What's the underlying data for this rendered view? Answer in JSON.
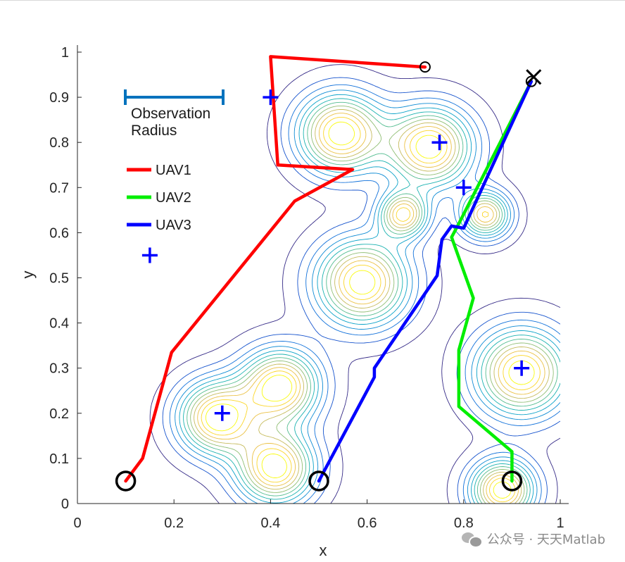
{
  "chart_data": {
    "type": "line",
    "xlabel": "x",
    "ylabel": "y",
    "xlim": [
      0,
      1
    ],
    "ylim": [
      0,
      1
    ],
    "xticks": [
      0,
      0.2,
      0.4,
      0.6,
      0.8,
      1
    ],
    "xtick_labels": [
      "0",
      "0.2",
      "0.4",
      "0.6",
      "0.8",
      "1"
    ],
    "yticks": [
      0,
      0.1,
      0.2,
      0.3,
      0.4,
      0.5,
      0.6,
      0.7,
      0.8,
      0.9,
      1
    ],
    "ytick_labels": [
      "0",
      "0.1",
      "0.2",
      "0.3",
      "0.4",
      "0.5",
      "0.6",
      "0.7",
      "0.8",
      "0.9",
      "1"
    ],
    "grid": false,
    "series": [
      {
        "name": "UAV1",
        "color": "#ff0000",
        "x": [
          0.1,
          0.135,
          0.195,
          0.45,
          0.57,
          0.415,
          0.4,
          0.72
        ],
        "y": [
          0.05,
          0.1,
          0.335,
          0.67,
          0.74,
          0.75,
          0.99,
          0.967
        ]
      },
      {
        "name": "UAV2",
        "color": "#00ee00",
        "x": [
          0.9,
          0.9,
          0.79,
          0.79,
          0.82,
          0.79,
          0.775,
          0.79,
          0.94
        ],
        "y": [
          0.05,
          0.115,
          0.215,
          0.34,
          0.455,
          0.545,
          0.59,
          0.62,
          0.935
        ]
      },
      {
        "name": "UAV3",
        "color": "#0000ff",
        "x": [
          0.5,
          0.615,
          0.615,
          0.745,
          0.755,
          0.775,
          0.8,
          0.94
        ],
        "y": [
          0.05,
          0.28,
          0.3,
          0.505,
          0.585,
          0.615,
          0.61,
          0.935
        ]
      }
    ],
    "start_markers": [
      {
        "x": 0.1,
        "y": 0.05
      },
      {
        "x": 0.5,
        "y": 0.05
      },
      {
        "x": 0.9,
        "y": 0.05
      }
    ],
    "end_markers": [
      {
        "x": 0.72,
        "y": 0.967
      },
      {
        "x": 0.94,
        "y": 0.935
      }
    ],
    "cross_marker": {
      "x": 0.945,
      "y": 0.945
    },
    "targets": [
      {
        "x": 0.4,
        "y": 0.9
      },
      {
        "x": 0.75,
        "y": 0.8
      },
      {
        "x": 0.8,
        "y": 0.7
      },
      {
        "x": 0.15,
        "y": 0.55
      },
      {
        "x": 0.92,
        "y": 0.3
      },
      {
        "x": 0.3,
        "y": 0.2
      }
    ],
    "contour_peaks": [
      {
        "x": 0.545,
        "y": 0.82,
        "sx": 0.06,
        "sy": 0.06,
        "a": 1.0
      },
      {
        "x": 0.73,
        "y": 0.79,
        "sx": 0.06,
        "sy": 0.06,
        "a": 1.0
      },
      {
        "x": 0.675,
        "y": 0.64,
        "sx": 0.035,
        "sy": 0.035,
        "a": 0.85
      },
      {
        "x": 0.845,
        "y": 0.64,
        "sx": 0.035,
        "sy": 0.035,
        "a": 0.85
      },
      {
        "x": 0.59,
        "y": 0.49,
        "sx": 0.065,
        "sy": 0.065,
        "a": 1.0
      },
      {
        "x": 0.42,
        "y": 0.26,
        "sx": 0.055,
        "sy": 0.055,
        "a": 1.0
      },
      {
        "x": 0.29,
        "y": 0.19,
        "sx": 0.055,
        "sy": 0.055,
        "a": 1.0
      },
      {
        "x": 0.41,
        "y": 0.08,
        "sx": 0.055,
        "sy": 0.055,
        "a": 1.0
      },
      {
        "x": 0.92,
        "y": 0.29,
        "sx": 0.065,
        "sy": 0.065,
        "a": 1.0
      },
      {
        "x": 0.88,
        "y": 0.03,
        "sx": 0.045,
        "sy": 0.045,
        "a": 1.0
      }
    ],
    "observation_radius": {
      "label_line1": "Observation",
      "label_line2": "Radius",
      "length": 0.2
    },
    "legend": {
      "entries": [
        "UAV1",
        "UAV2",
        "UAV3"
      ],
      "location": "upper-left"
    }
  },
  "watermark": {
    "text": "公众号 · 天天Matlab",
    "icon": "wechat-icon"
  }
}
